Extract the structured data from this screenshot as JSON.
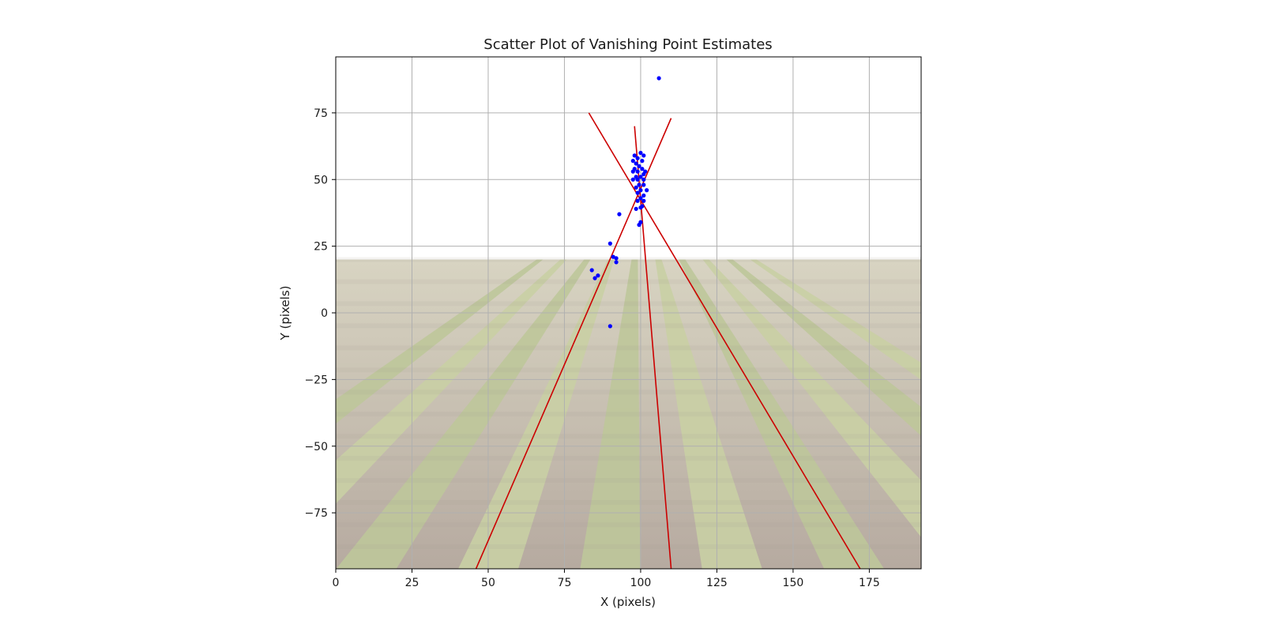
{
  "chart_data": {
    "type": "scatter",
    "title": "Scatter Plot of Vanishing Point Estimates",
    "xlabel": "X (pixels)",
    "ylabel": "Y (pixels)",
    "xlim": [
      0,
      192
    ],
    "ylim": [
      -96,
      96
    ],
    "grid": true,
    "background_image": "crop-field-rows",
    "background_y_range": [
      -96,
      20
    ],
    "x_ticks": [
      0,
      25,
      50,
      75,
      100,
      125,
      150,
      175
    ],
    "y_ticks": [
      75,
      50,
      25,
      0,
      -25,
      -50,
      -75
    ],
    "x_tick_labels": [
      "0",
      "25",
      "50",
      "75",
      "100",
      "125",
      "150",
      "175"
    ],
    "y_tick_labels": [
      "75",
      "50",
      "25",
      "0",
      "−25",
      "−50",
      "−75"
    ],
    "point_color": "#0000ff",
    "line_color": "#cc0000",
    "points": [
      {
        "x": 106,
        "y": 88
      },
      {
        "x": 97.5,
        "y": 57
      },
      {
        "x": 98,
        "y": 59
      },
      {
        "x": 98.5,
        "y": 56
      },
      {
        "x": 99,
        "y": 58
      },
      {
        "x": 100,
        "y": 60
      },
      {
        "x": 100.5,
        "y": 57
      },
      {
        "x": 101,
        "y": 59
      },
      {
        "x": 99.5,
        "y": 55
      },
      {
        "x": 98,
        "y": 54
      },
      {
        "x": 97.5,
        "y": 53
      },
      {
        "x": 99,
        "y": 53
      },
      {
        "x": 100.5,
        "y": 54
      },
      {
        "x": 101.5,
        "y": 53
      },
      {
        "x": 101,
        "y": 52
      },
      {
        "x": 100,
        "y": 51
      },
      {
        "x": 98.5,
        "y": 51
      },
      {
        "x": 97.5,
        "y": 50
      },
      {
        "x": 99,
        "y": 50
      },
      {
        "x": 101,
        "y": 50
      },
      {
        "x": 99.5,
        "y": 48
      },
      {
        "x": 101,
        "y": 48
      },
      {
        "x": 98.5,
        "y": 47
      },
      {
        "x": 100,
        "y": 46
      },
      {
        "x": 102,
        "y": 46
      },
      {
        "x": 99,
        "y": 45
      },
      {
        "x": 101,
        "y": 44
      },
      {
        "x": 100,
        "y": 43
      },
      {
        "x": 99,
        "y": 42
      },
      {
        "x": 101,
        "y": 42
      },
      {
        "x": 100.5,
        "y": 40
      },
      {
        "x": 98.5,
        "y": 39
      },
      {
        "x": 100,
        "y": 39.5
      },
      {
        "x": 93,
        "y": 37
      },
      {
        "x": 100,
        "y": 34
      },
      {
        "x": 99.5,
        "y": 33
      },
      {
        "x": 90,
        "y": 26
      },
      {
        "x": 91,
        "y": 21
      },
      {
        "x": 92,
        "y": 20.5
      },
      {
        "x": 92,
        "y": 19
      },
      {
        "x": 84,
        "y": 16
      },
      {
        "x": 86,
        "y": 14
      },
      {
        "x": 85,
        "y": 13
      },
      {
        "x": 90,
        "y": -5
      }
    ],
    "lines": [
      {
        "x1": 46,
        "y1": -96,
        "x2": 110,
        "y2": 73
      },
      {
        "x1": 83,
        "y1": 75,
        "x2": 172,
        "y2": -96
      },
      {
        "x1": 98,
        "y1": 70,
        "x2": 110,
        "y2": -96
      }
    ]
  }
}
